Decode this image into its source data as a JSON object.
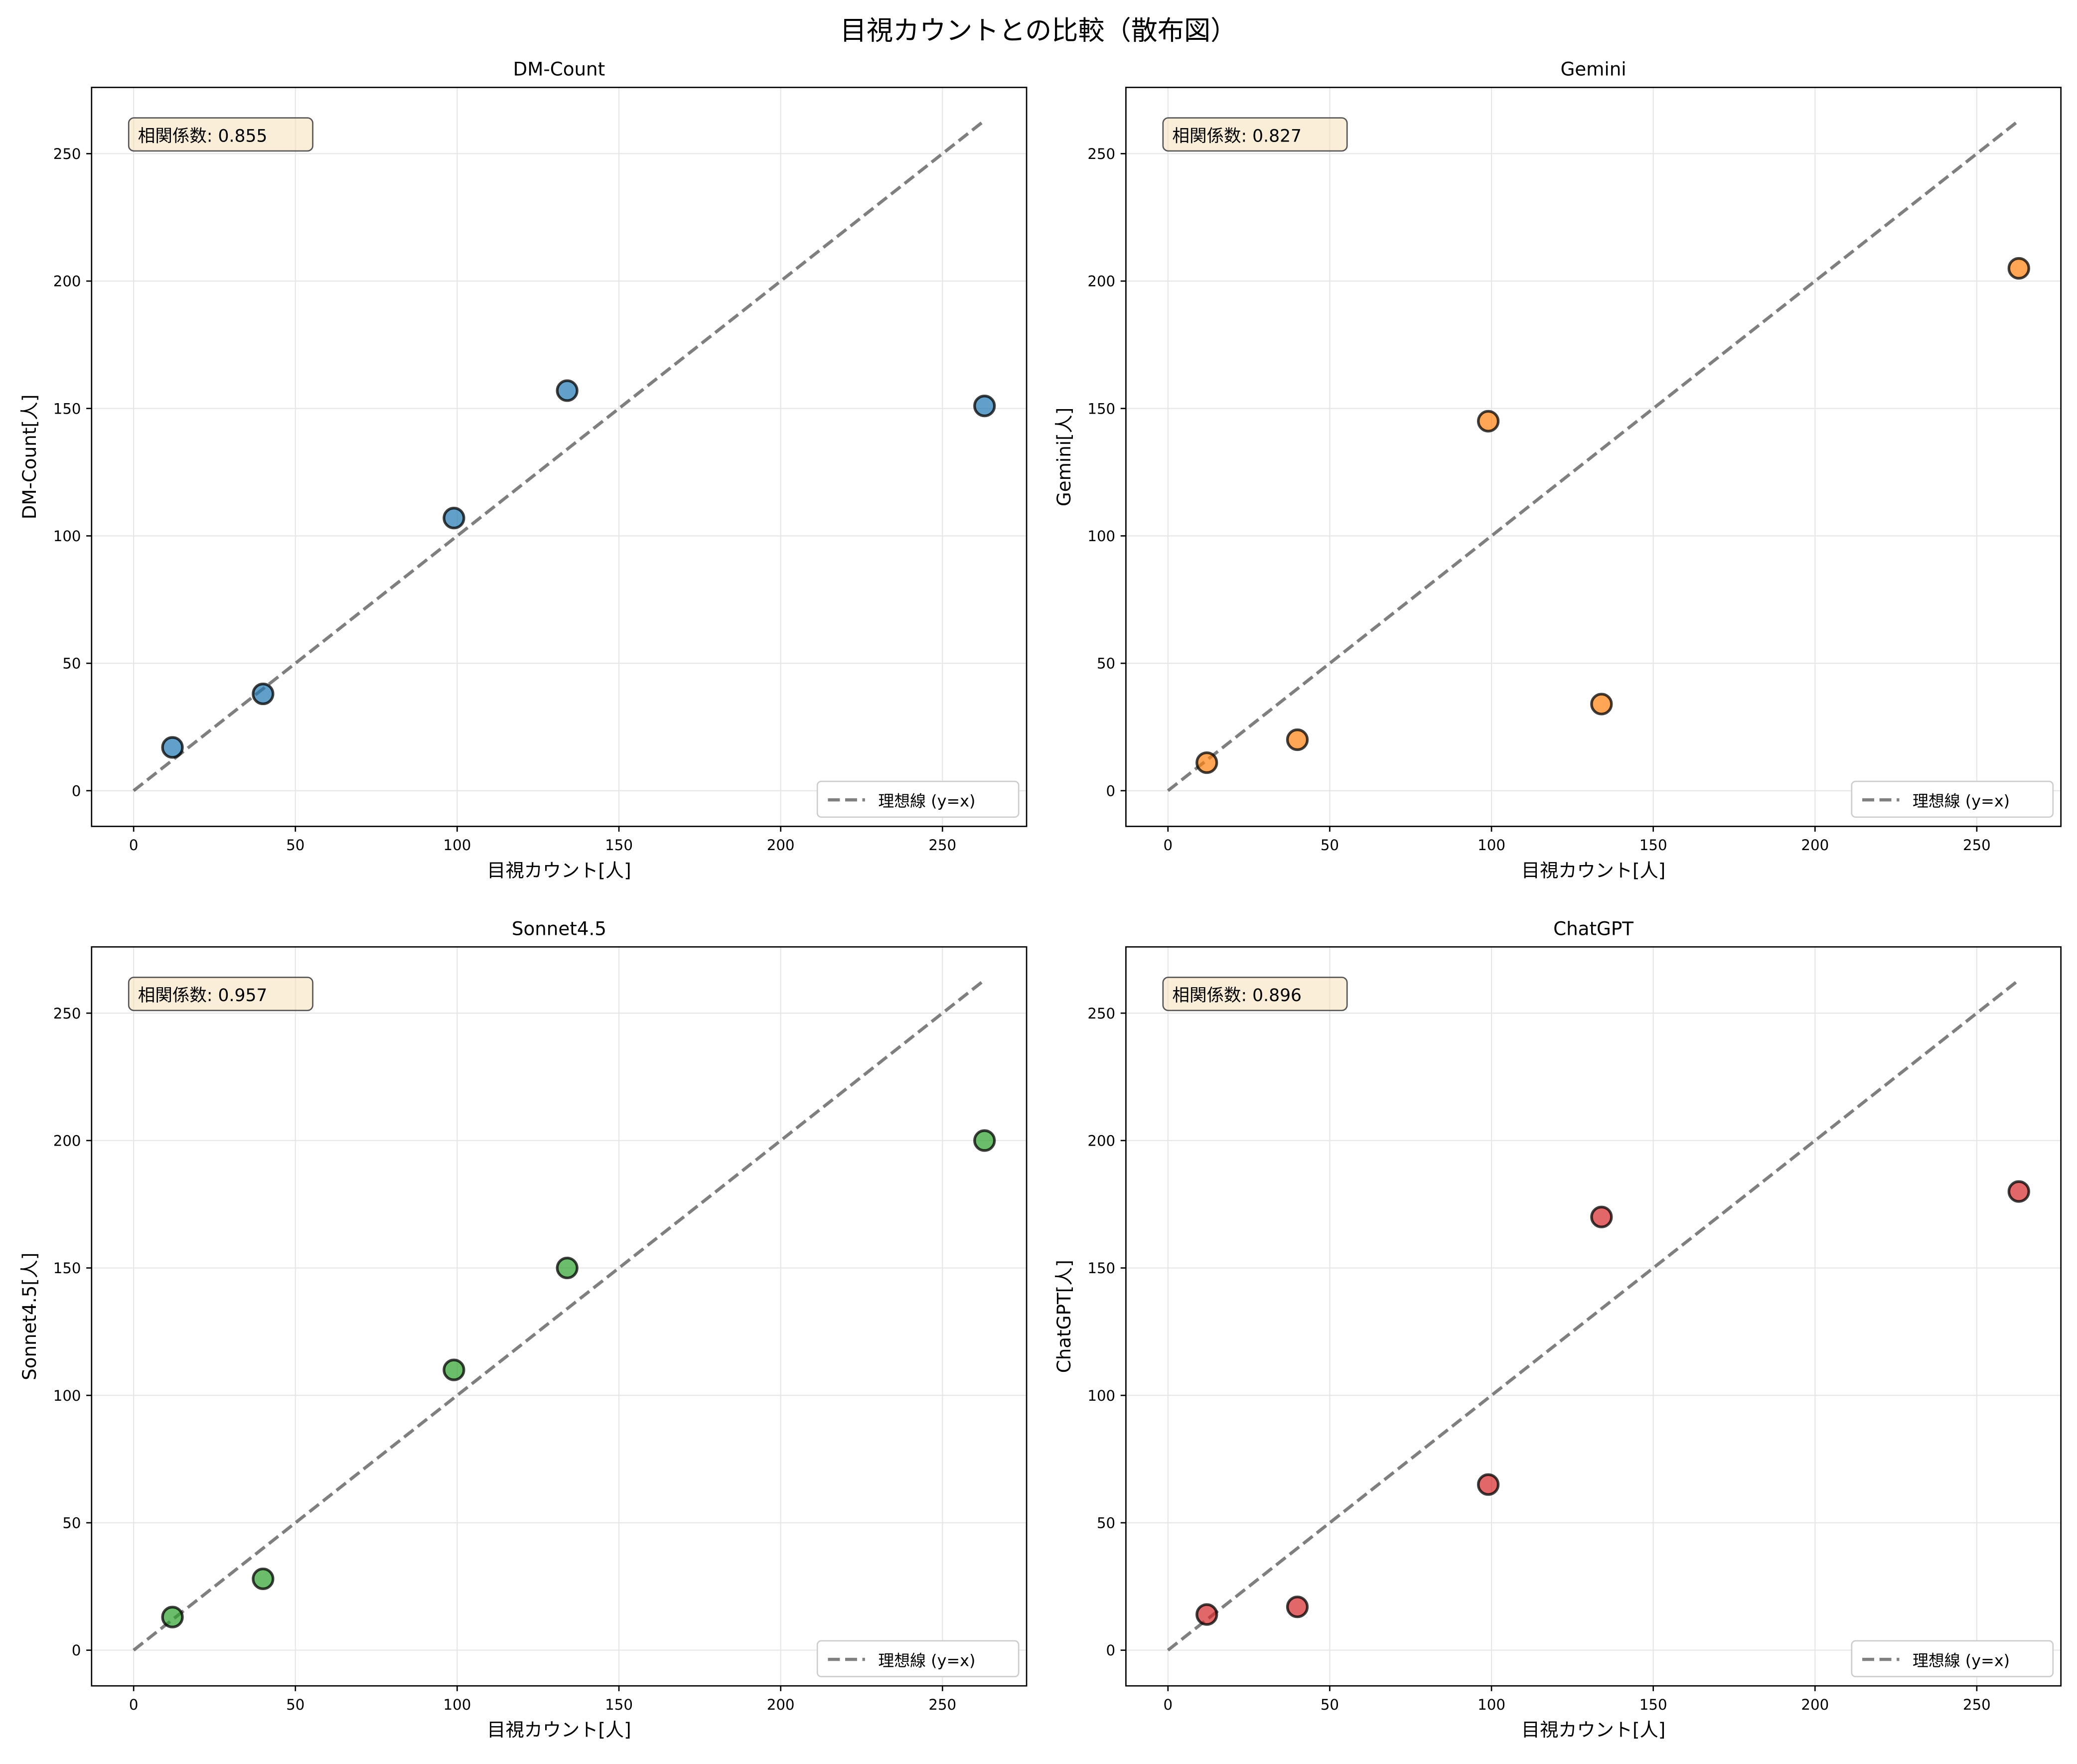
{
  "suptitle": "目視カウントとの比較（散布図）",
  "chart_data": [
    {
      "type": "scatter",
      "title": "DM-Count",
      "xlabel": "目視カウント[人]",
      "ylabel": "DM-Count[人]",
      "correlation_label": "相関係数: 0.855",
      "color": "#1f77b4",
      "x": [
        12,
        40,
        99,
        134,
        263
      ],
      "y": [
        17,
        38,
        107,
        157,
        151
      ],
      "xlim": [
        -13,
        276
      ],
      "ylim": [
        -14,
        276
      ],
      "xticks": [
        0,
        50,
        100,
        150,
        200,
        250
      ],
      "yticks": [
        0,
        50,
        100,
        150,
        200,
        250
      ],
      "grid": true,
      "legend": "lower right",
      "legend_label": "理想線 (y=x)",
      "ideal_line": [
        0,
        263
      ]
    },
    {
      "type": "scatter",
      "title": "Gemini",
      "xlabel": "目視カウント[人]",
      "ylabel": "Gemini[人]",
      "correlation_label": "相関係数: 0.827",
      "color": "#ff7f0e",
      "x": [
        12,
        40,
        99,
        134,
        263
      ],
      "y": [
        11,
        20,
        145,
        34,
        205
      ],
      "xlim": [
        -13,
        276
      ],
      "ylim": [
        -14,
        276
      ],
      "xticks": [
        0,
        50,
        100,
        150,
        200,
        250
      ],
      "yticks": [
        0,
        50,
        100,
        150,
        200,
        250
      ],
      "grid": true,
      "legend": "lower right",
      "legend_label": "理想線 (y=x)",
      "ideal_line": [
        0,
        263
      ]
    },
    {
      "type": "scatter",
      "title": "Sonnet4.5",
      "xlabel": "目視カウント[人]",
      "ylabel": "Sonnet4.5[人]",
      "correlation_label": "相関係数: 0.957",
      "color": "#2ca02c",
      "x": [
        12,
        40,
        99,
        134,
        263
      ],
      "y": [
        13,
        28,
        110,
        150,
        200
      ],
      "xlim": [
        -13,
        276
      ],
      "ylim": [
        -14,
        276
      ],
      "xticks": [
        0,
        50,
        100,
        150,
        200,
        250
      ],
      "yticks": [
        0,
        50,
        100,
        150,
        200,
        250
      ],
      "grid": true,
      "legend": "lower right",
      "legend_label": "理想線 (y=x)",
      "ideal_line": [
        0,
        263
      ]
    },
    {
      "type": "scatter",
      "title": "ChatGPT",
      "xlabel": "目視カウント[人]",
      "ylabel": "ChatGPT[人]",
      "correlation_label": "相関係数: 0.896",
      "color": "#d62728",
      "x": [
        12,
        40,
        99,
        134,
        263
      ],
      "y": [
        14,
        17,
        65,
        170,
        180
      ],
      "xlim": [
        -13,
        276
      ],
      "ylim": [
        -14,
        276
      ],
      "xticks": [
        0,
        50,
        100,
        150,
        200,
        250
      ],
      "yticks": [
        0,
        50,
        100,
        150,
        200,
        250
      ],
      "grid": true,
      "legend": "lower right",
      "legend_label": "理想線 (y=x)",
      "ideal_line": [
        0,
        263
      ]
    }
  ]
}
